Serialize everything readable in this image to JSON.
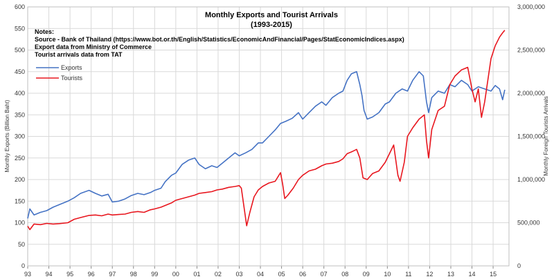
{
  "chart_data": {
    "type": "line",
    "title": "Monthly Exports and Tourist Arrivals",
    "subtitle": "(1993-2015)",
    "notes": [
      "Notes:",
      "Source - Bank of Thailand (https://www.bot.or.th/English/Statistics/EconomicAndFinancial/Pages/StatEconomicIndices.aspx)",
      "Export data from Ministry of Commerce",
      "Tourist arrivals data from TAT"
    ],
    "ylabel_left": "Monthly Exports (Billion Baht)",
    "ylabel_right": "Monthly Foreign Tourists Arrivals",
    "x_tick_labels": [
      "93",
      "94",
      "95",
      "96",
      "97",
      "98",
      "99",
      "00",
      "01",
      "02",
      "03",
      "04",
      "05",
      "06",
      "07",
      "08",
      "09",
      "10",
      "11",
      "12",
      "13",
      "14",
      "15"
    ],
    "x_range": [
      1993,
      2015.75
    ],
    "ylim_left": [
      0,
      600
    ],
    "ylim_right": [
      0,
      3000000
    ],
    "y_ticks_left": [
      "0",
      "50",
      "100",
      "150",
      "200",
      "250",
      "300",
      "350",
      "400",
      "450",
      "500",
      "550",
      "600"
    ],
    "y_ticks_right": [
      "0",
      "500,000",
      "1,000,000",
      "1,500,000",
      "2,000,000",
      "2,500,000",
      "3,000,000"
    ],
    "grid": true,
    "legend_position": "upper-left",
    "series": [
      {
        "name": "Exports",
        "axis": "left",
        "color": "#4472c4",
        "points": [
          [
            1993.0,
            110
          ],
          [
            1993.1,
            132
          ],
          [
            1993.3,
            118
          ],
          [
            1993.6,
            124
          ],
          [
            1993.9,
            128
          ],
          [
            1994.2,
            136
          ],
          [
            1994.5,
            142
          ],
          [
            1994.9,
            150
          ],
          [
            1995.2,
            158
          ],
          [
            1995.5,
            168
          ],
          [
            1995.9,
            175
          ],
          [
            1996.2,
            168
          ],
          [
            1996.5,
            162
          ],
          [
            1996.8,
            166
          ],
          [
            1997.0,
            148
          ],
          [
            1997.3,
            150
          ],
          [
            1997.6,
            155
          ],
          [
            1997.9,
            163
          ],
          [
            1998.2,
            168
          ],
          [
            1998.5,
            165
          ],
          [
            1998.8,
            170
          ],
          [
            1999.0,
            175
          ],
          [
            1999.3,
            180
          ],
          [
            1999.5,
            195
          ],
          [
            1999.8,
            210
          ],
          [
            2000.0,
            215
          ],
          [
            2000.3,
            235
          ],
          [
            2000.6,
            245
          ],
          [
            2000.9,
            250
          ],
          [
            2001.1,
            235
          ],
          [
            2001.4,
            225
          ],
          [
            2001.7,
            232
          ],
          [
            2001.95,
            228
          ],
          [
            2002.2,
            238
          ],
          [
            2002.5,
            250
          ],
          [
            2002.8,
            262
          ],
          [
            2003.0,
            255
          ],
          [
            2003.3,
            262
          ],
          [
            2003.6,
            270
          ],
          [
            2003.9,
            285
          ],
          [
            2004.1,
            285
          ],
          [
            2004.4,
            300
          ],
          [
            2004.7,
            315
          ],
          [
            2004.95,
            330
          ],
          [
            2005.2,
            335
          ],
          [
            2005.5,
            342
          ],
          [
            2005.8,
            355
          ],
          [
            2006.0,
            340
          ],
          [
            2006.3,
            355
          ],
          [
            2006.6,
            370
          ],
          [
            2006.9,
            380
          ],
          [
            2007.1,
            372
          ],
          [
            2007.4,
            390
          ],
          [
            2007.7,
            400
          ],
          [
            2007.9,
            405
          ],
          [
            2008.1,
            430
          ],
          [
            2008.3,
            445
          ],
          [
            2008.55,
            450
          ],
          [
            2008.7,
            420
          ],
          [
            2008.8,
            395
          ],
          [
            2008.9,
            360
          ],
          [
            2009.05,
            340
          ],
          [
            2009.3,
            345
          ],
          [
            2009.6,
            355
          ],
          [
            2009.9,
            375
          ],
          [
            2010.1,
            380
          ],
          [
            2010.4,
            400
          ],
          [
            2010.7,
            410
          ],
          [
            2010.95,
            405
          ],
          [
            2011.2,
            430
          ],
          [
            2011.5,
            450
          ],
          [
            2011.7,
            440
          ],
          [
            2011.85,
            380
          ],
          [
            2011.95,
            355
          ],
          [
            2012.1,
            390
          ],
          [
            2012.4,
            405
          ],
          [
            2012.7,
            400
          ],
          [
            2012.95,
            420
          ],
          [
            2013.2,
            415
          ],
          [
            2013.5,
            430
          ],
          [
            2013.8,
            420
          ],
          [
            2014.0,
            405
          ],
          [
            2014.3,
            415
          ],
          [
            2014.6,
            410
          ],
          [
            2014.9,
            405
          ],
          [
            2015.1,
            418
          ],
          [
            2015.3,
            410
          ],
          [
            2015.45,
            385
          ],
          [
            2015.55,
            408
          ]
        ]
      },
      {
        "name": "Tourists",
        "axis": "right",
        "color": "#e8161e",
        "points": [
          [
            1993.0,
            460000
          ],
          [
            1993.1,
            420000
          ],
          [
            1993.3,
            485000
          ],
          [
            1993.6,
            478000
          ],
          [
            1993.9,
            492000
          ],
          [
            1994.2,
            485000
          ],
          [
            1994.5,
            490000
          ],
          [
            1994.9,
            500000
          ],
          [
            1995.2,
            540000
          ],
          [
            1995.5,
            560000
          ],
          [
            1995.9,
            585000
          ],
          [
            1996.2,
            590000
          ],
          [
            1996.5,
            580000
          ],
          [
            1996.8,
            600000
          ],
          [
            1997.0,
            590000
          ],
          [
            1997.3,
            595000
          ],
          [
            1997.6,
            600000
          ],
          [
            1997.9,
            620000
          ],
          [
            1998.2,
            630000
          ],
          [
            1998.5,
            620000
          ],
          [
            1998.8,
            650000
          ],
          [
            1999.0,
            660000
          ],
          [
            1999.3,
            680000
          ],
          [
            1999.5,
            700000
          ],
          [
            1999.8,
            730000
          ],
          [
            2000.0,
            760000
          ],
          [
            2000.3,
            780000
          ],
          [
            2000.6,
            800000
          ],
          [
            2000.9,
            820000
          ],
          [
            2001.1,
            840000
          ],
          [
            2001.4,
            850000
          ],
          [
            2001.7,
            860000
          ],
          [
            2001.95,
            880000
          ],
          [
            2002.2,
            890000
          ],
          [
            2002.5,
            910000
          ],
          [
            2002.8,
            920000
          ],
          [
            2003.0,
            930000
          ],
          [
            2003.1,
            900000
          ],
          [
            2003.25,
            640000
          ],
          [
            2003.35,
            465000
          ],
          [
            2003.5,
            620000
          ],
          [
            2003.7,
            800000
          ],
          [
            2003.9,
            880000
          ],
          [
            2004.1,
            920000
          ],
          [
            2004.4,
            960000
          ],
          [
            2004.7,
            980000
          ],
          [
            2004.95,
            1080000
          ],
          [
            2005.05,
            950000
          ],
          [
            2005.15,
            780000
          ],
          [
            2005.3,
            820000
          ],
          [
            2005.55,
            900000
          ],
          [
            2005.8,
            1000000
          ],
          [
            2006.0,
            1050000
          ],
          [
            2006.3,
            1100000
          ],
          [
            2006.6,
            1120000
          ],
          [
            2006.9,
            1160000
          ],
          [
            2007.1,
            1180000
          ],
          [
            2007.4,
            1190000
          ],
          [
            2007.7,
            1210000
          ],
          [
            2007.9,
            1240000
          ],
          [
            2008.1,
            1300000
          ],
          [
            2008.3,
            1320000
          ],
          [
            2008.55,
            1350000
          ],
          [
            2008.7,
            1250000
          ],
          [
            2008.85,
            1020000
          ],
          [
            2009.05,
            1000000
          ],
          [
            2009.3,
            1070000
          ],
          [
            2009.6,
            1100000
          ],
          [
            2009.9,
            1200000
          ],
          [
            2010.1,
            1300000
          ],
          [
            2010.3,
            1400000
          ],
          [
            2010.5,
            1050000
          ],
          [
            2010.6,
            980000
          ],
          [
            2010.8,
            1200000
          ],
          [
            2010.95,
            1500000
          ],
          [
            2011.2,
            1600000
          ],
          [
            2011.5,
            1700000
          ],
          [
            2011.75,
            1750000
          ],
          [
            2011.85,
            1450000
          ],
          [
            2011.95,
            1250000
          ],
          [
            2012.1,
            1580000
          ],
          [
            2012.4,
            1800000
          ],
          [
            2012.7,
            1850000
          ],
          [
            2012.95,
            2100000
          ],
          [
            2013.2,
            2200000
          ],
          [
            2013.5,
            2270000
          ],
          [
            2013.8,
            2300000
          ],
          [
            2014.0,
            2050000
          ],
          [
            2014.15,
            1900000
          ],
          [
            2014.3,
            2050000
          ],
          [
            2014.45,
            1720000
          ],
          [
            2014.6,
            1900000
          ],
          [
            2014.9,
            2400000
          ],
          [
            2015.1,
            2550000
          ],
          [
            2015.3,
            2650000
          ],
          [
            2015.45,
            2700000
          ],
          [
            2015.55,
            2730000
          ]
        ]
      }
    ]
  }
}
